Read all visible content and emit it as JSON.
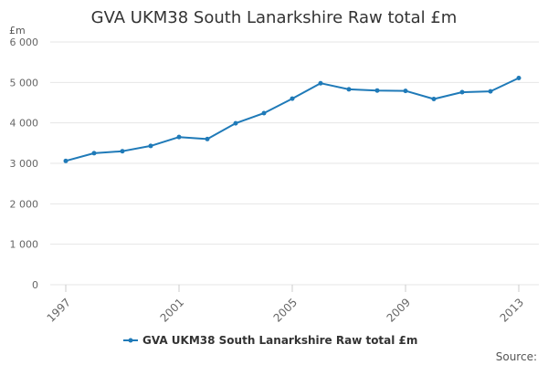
{
  "chart_data": {
    "type": "line",
    "title": "GVA UKM38 South Lanarkshire Raw total £m",
    "unit_label": "£m",
    "x": [
      1997,
      1998,
      1999,
      2000,
      2001,
      2002,
      2003,
      2004,
      2005,
      2006,
      2007,
      2008,
      2009,
      2010,
      2011,
      2012,
      2013
    ],
    "x_tick_labels": [
      "1997",
      "2001",
      "2005",
      "2009",
      "2013"
    ],
    "series": [
      {
        "name": "GVA UKM38 South Lanarkshire Raw total £m",
        "values": [
          3060,
          3250,
          3300,
          3430,
          3650,
          3600,
          3990,
          4240,
          4600,
          4980,
          4830,
          4800,
          4790,
          4590,
          4760,
          4780,
          5110
        ]
      }
    ],
    "y_ticks": [
      0,
      1000,
      2000,
      3000,
      4000,
      5000,
      6000
    ],
    "y_tick_labels": [
      "0",
      "1 000",
      "2 000",
      "3 000",
      "4 000",
      "5 000",
      "6 000"
    ],
    "ylim": [
      0,
      6000
    ],
    "xlim": [
      1997,
      2013
    ],
    "grid": "horizontal",
    "legend": "bottom-center",
    "line_color": "#1f7ab8",
    "grid_color": "#e6e6e6",
    "source_label": "Source:"
  }
}
